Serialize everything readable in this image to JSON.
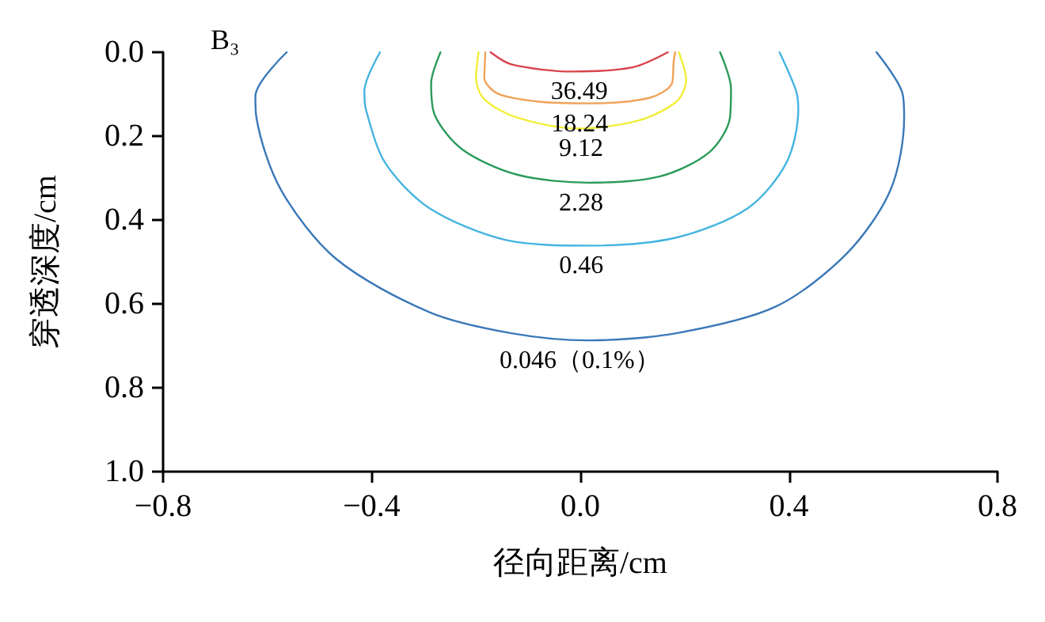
{
  "chart_data": {
    "type": "line",
    "xlabel": "径向距离/cm",
    "ylabel": "穿透深度/cm",
    "xlim": [
      -0.8,
      0.8
    ],
    "xticks": [
      {
        "value": -0.8,
        "label": "−0.8"
      },
      {
        "value": -0.4,
        "label": "−0.4"
      },
      {
        "value": 0,
        "label": "0.0"
      },
      {
        "value": 0.4,
        "label": "0.4"
      },
      {
        "value": 0.8,
        "label": "0.8"
      }
    ],
    "ylim": [
      1.0,
      0.0
    ],
    "yticks": [
      {
        "value": 0,
        "label": "0.0"
      },
      {
        "value": 0.2,
        "label": "0.2"
      },
      {
        "value": 0.4,
        "label": "0.4"
      },
      {
        "value": 0.6,
        "label": "0.6"
      },
      {
        "value": 0.8,
        "label": "0.8"
      },
      {
        "value": 1,
        "label": "1.0"
      }
    ],
    "grid": false,
    "legend": false,
    "marker": "none",
    "line_style": "solid",
    "series": [
      {
        "name": "36.49",
        "color": "#d9434d",
        "x": [
          -0.172,
          -0.132,
          -0.016,
          0.1,
          0.168
        ],
        "values": [
          0,
          0.029,
          0.046,
          0.036,
          0
        ]
      },
      {
        "name": "18.24",
        "color": "#f0a35a",
        "x": [
          -0.182,
          -0.184,
          -0.158,
          -0.079,
          0.016,
          0.132,
          0.176,
          0.179,
          0.182
        ],
        "values": [
          0,
          0.061,
          0.099,
          0.118,
          0.122,
          0.109,
          0.074,
          0.023,
          0
        ]
      },
      {
        "name": "9.12",
        "color": "#f2ee3a",
        "x": [
          -0.195,
          -0.2,
          -0.184,
          -0.121,
          -0.005,
          0.111,
          0.184,
          0.203,
          0.189
        ],
        "values": [
          0,
          0.061,
          0.112,
          0.156,
          0.182,
          0.163,
          0.118,
          0.067,
          0
        ]
      },
      {
        "name": "2.28",
        "color": "#2a9a5a",
        "x": [
          -0.268,
          -0.286,
          -0.279,
          -0.226,
          -0.121,
          0.016,
          0.153,
          0.247,
          0.287,
          0.289,
          0.268
        ],
        "values": [
          0,
          0.074,
          0.15,
          0.232,
          0.292,
          0.311,
          0.296,
          0.239,
          0.156,
          0.086,
          0
        ]
      },
      {
        "name": "0.46",
        "color": "#45b4e0",
        "x": [
          -0.384,
          -0.414,
          -0.411,
          -0.374,
          -0.289,
          -0.142,
          0.016,
          0.184,
          0.321,
          0.395,
          0.418,
          0.414,
          0.382
        ],
        "values": [
          0,
          0.093,
          0.137,
          0.264,
          0.372,
          0.448,
          0.461,
          0.442,
          0.372,
          0.264,
          0.137,
          0.093,
          0
        ]
      },
      {
        "name": "0.046（0.1%）",
        "color": "#3a78b8",
        "x": [
          -0.563,
          -0.623,
          -0.621,
          -0.574,
          -0.468,
          -0.289,
          -0.132,
          0.016,
          0.184,
          0.374,
          0.511,
          0.595,
          0.621,
          0.618,
          0.568
        ],
        "values": [
          0,
          0.105,
          0.156,
          0.328,
          0.493,
          0.62,
          0.67,
          0.687,
          0.67,
          0.607,
          0.48,
          0.328,
          0.156,
          0.099,
          0
        ]
      }
    ],
    "annotations": [
      "B₃"
    ]
  }
}
